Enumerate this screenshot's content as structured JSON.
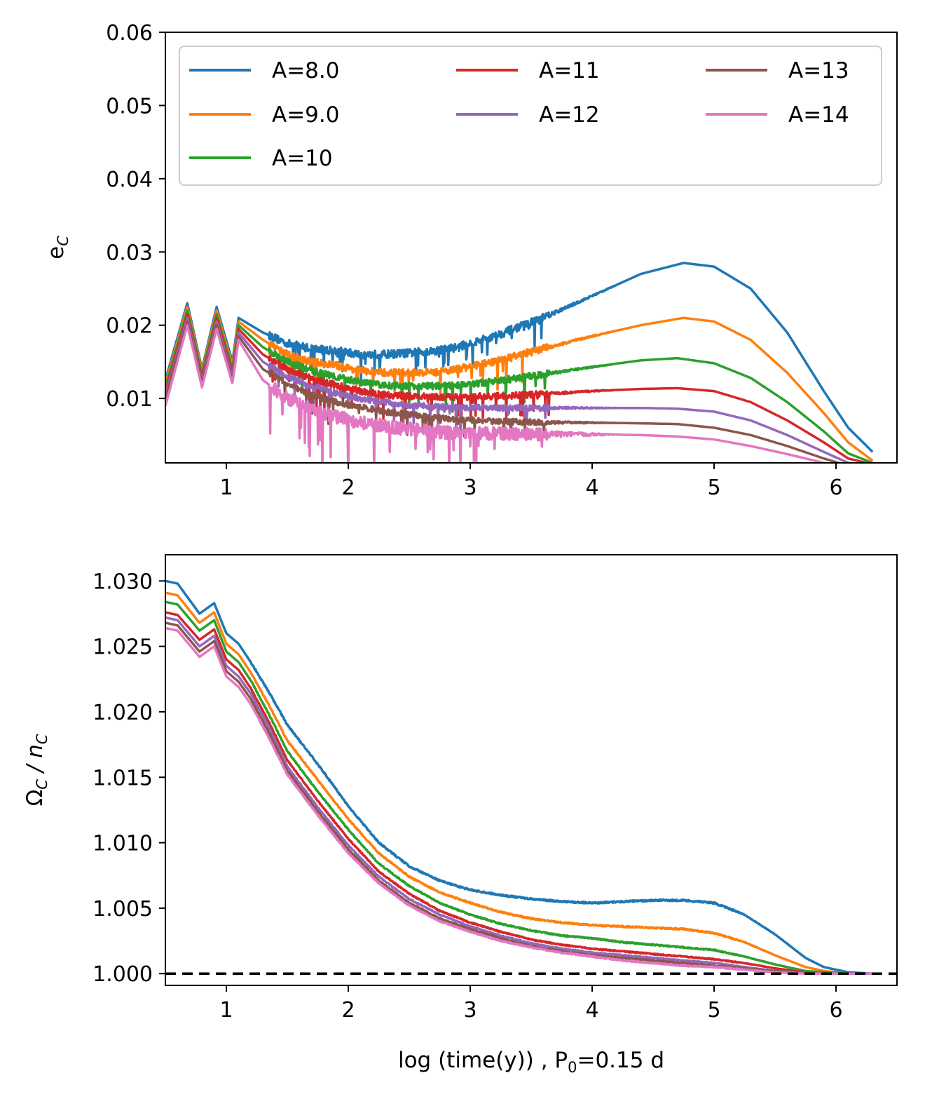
{
  "chart_data": [
    {
      "id": "top",
      "type": "line",
      "title": "",
      "xlabel": "",
      "ylabel": "e",
      "ylabel_sub": "C",
      "xlim": [
        0.5,
        6.5
      ],
      "ylim": [
        0.0012,
        0.06
      ],
      "xticks": [
        {
          "v": 1,
          "label": "1"
        },
        {
          "v": 2,
          "label": "2"
        },
        {
          "v": 3,
          "label": "3"
        },
        {
          "v": 4,
          "label": "4"
        },
        {
          "v": 5,
          "label": "5"
        },
        {
          "v": 6,
          "label": "6"
        }
      ],
      "yticks": [
        {
          "v": 0.01,
          "label": "0.01"
        },
        {
          "v": 0.02,
          "label": "0.02"
        },
        {
          "v": 0.03,
          "label": "0.03"
        },
        {
          "v": 0.04,
          "label": "0.04"
        },
        {
          "v": 0.05,
          "label": "0.05"
        },
        {
          "v": 0.06,
          "label": "0.06"
        }
      ],
      "legend": {
        "placement": "top",
        "columns": 3
      },
      "series": [
        {
          "name": "A=8.0",
          "color": "#1f77b4",
          "noise": 0.0011,
          "x": [
            0.5,
            0.68,
            0.8,
            0.92,
            1.05,
            1.1,
            1.3,
            1.5,
            1.7,
            1.9,
            2.1,
            2.3,
            2.5,
            2.7,
            2.9,
            3.2,
            3.6,
            4.0,
            4.4,
            4.75,
            5.0,
            5.3,
            5.6,
            5.9,
            6.1,
            6.3
          ],
          "y": [
            0.0125,
            0.023,
            0.014,
            0.0225,
            0.015,
            0.021,
            0.019,
            0.0175,
            0.0168,
            0.0165,
            0.016,
            0.016,
            0.0162,
            0.0165,
            0.017,
            0.0185,
            0.021,
            0.024,
            0.027,
            0.0285,
            0.028,
            0.025,
            0.019,
            0.011,
            0.006,
            0.0027
          ]
        },
        {
          "name": "A=9.0",
          "color": "#ff7f0e",
          "noise": 0.001,
          "x": [
            0.5,
            0.68,
            0.8,
            0.92,
            1.05,
            1.1,
            1.3,
            1.5,
            1.7,
            1.9,
            2.1,
            2.3,
            2.5,
            2.7,
            2.9,
            3.2,
            3.6,
            4.0,
            4.4,
            4.75,
            5.0,
            5.3,
            5.6,
            5.9,
            6.1,
            6.3
          ],
          "y": [
            0.012,
            0.0225,
            0.0137,
            0.022,
            0.0145,
            0.0205,
            0.018,
            0.016,
            0.015,
            0.0145,
            0.0138,
            0.0135,
            0.0135,
            0.0136,
            0.014,
            0.015,
            0.0168,
            0.0185,
            0.02,
            0.021,
            0.0205,
            0.018,
            0.0135,
            0.008,
            0.004,
            0.0015
          ]
        },
        {
          "name": "A=10",
          "color": "#2ca02c",
          "noise": 0.0009,
          "x": [
            0.5,
            0.68,
            0.8,
            0.92,
            1.05,
            1.1,
            1.3,
            1.5,
            1.7,
            1.9,
            2.1,
            2.3,
            2.5,
            2.7,
            2.9,
            3.2,
            3.6,
            4.0,
            4.4,
            4.7,
            5.0,
            5.3,
            5.6,
            5.9,
            6.1,
            6.3
          ],
          "y": [
            0.0115,
            0.022,
            0.0133,
            0.0215,
            0.014,
            0.02,
            0.017,
            0.015,
            0.0138,
            0.013,
            0.0122,
            0.0118,
            0.0117,
            0.0117,
            0.0118,
            0.0123,
            0.0133,
            0.0143,
            0.0152,
            0.0155,
            0.0148,
            0.0128,
            0.0095,
            0.0055,
            0.0025,
            0.0012
          ]
        },
        {
          "name": "A=11",
          "color": "#d62728",
          "noise": 0.0009,
          "x": [
            0.5,
            0.68,
            0.8,
            0.92,
            1.05,
            1.1,
            1.3,
            1.5,
            1.7,
            1.9,
            2.1,
            2.3,
            2.5,
            2.7,
            2.9,
            3.2,
            3.6,
            4.0,
            4.4,
            4.7,
            5.0,
            5.3,
            5.6,
            5.9,
            6.1,
            6.3
          ],
          "y": [
            0.011,
            0.0215,
            0.0128,
            0.021,
            0.0135,
            0.0195,
            0.016,
            0.014,
            0.0127,
            0.0118,
            0.011,
            0.0105,
            0.0103,
            0.0102,
            0.0102,
            0.0103,
            0.0106,
            0.011,
            0.0113,
            0.0114,
            0.011,
            0.0095,
            0.007,
            0.004,
            0.0018,
            0.001
          ]
        },
        {
          "name": "A=12",
          "color": "#9467bd",
          "noise": 0.0008,
          "x": [
            0.5,
            0.68,
            0.8,
            0.92,
            1.05,
            1.1,
            1.3,
            1.5,
            1.7,
            1.9,
            2.1,
            2.3,
            2.5,
            2.7,
            2.9,
            3.2,
            3.6,
            4.0,
            4.4,
            4.7,
            5.0,
            5.3,
            5.6,
            5.9,
            6.1,
            6.3
          ],
          "y": [
            0.0105,
            0.021,
            0.0124,
            0.0205,
            0.013,
            0.019,
            0.015,
            0.013,
            0.0117,
            0.0107,
            0.01,
            0.0095,
            0.0091,
            0.0089,
            0.0088,
            0.0087,
            0.0087,
            0.0087,
            0.0087,
            0.0086,
            0.0082,
            0.007,
            0.005,
            0.0027,
            0.0012,
            0.0008
          ]
        },
        {
          "name": "A=13",
          "color": "#8c564b",
          "noise": 0.0008,
          "x": [
            0.5,
            0.68,
            0.8,
            0.92,
            1.05,
            1.1,
            1.3,
            1.5,
            1.7,
            1.9,
            2.1,
            2.3,
            2.5,
            2.7,
            2.9,
            3.2,
            3.6,
            4.0,
            4.4,
            4.7,
            5.0,
            5.3,
            5.6,
            5.9,
            6.1,
            6.3
          ],
          "y": [
            0.01,
            0.0205,
            0.012,
            0.02,
            0.0125,
            0.0185,
            0.014,
            0.012,
            0.0105,
            0.0095,
            0.0088,
            0.0082,
            0.0078,
            0.0074,
            0.0071,
            0.0069,
            0.0067,
            0.0067,
            0.0066,
            0.0065,
            0.006,
            0.005,
            0.0035,
            0.0018,
            0.0008,
            0.0005
          ]
        },
        {
          "name": "A=14",
          "color": "#e377c2",
          "noise": 0.0018,
          "x": [
            0.5,
            0.68,
            0.8,
            0.92,
            1.05,
            1.1,
            1.3,
            1.5,
            1.7,
            1.9,
            2.1,
            2.3,
            2.5,
            2.7,
            2.9,
            3.2,
            3.6,
            4.0,
            4.4,
            4.7,
            5.0,
            5.3,
            5.6,
            5.9,
            6.1,
            6.3
          ],
          "y": [
            0.009,
            0.02,
            0.0115,
            0.0195,
            0.012,
            0.018,
            0.0125,
            0.01,
            0.0085,
            0.0075,
            0.0068,
            0.0062,
            0.0058,
            0.0055,
            0.0053,
            0.0052,
            0.0051,
            0.0051,
            0.005,
            0.0048,
            0.0044,
            0.0035,
            0.0024,
            0.0012,
            0.0005,
            0.0003
          ]
        }
      ]
    },
    {
      "id": "bottom",
      "type": "line",
      "title": "",
      "xlabel": "log (time(y)) , P",
      "xlabel_sub": "0",
      "xlabel_tail": "=0.15 d",
      "ylabel": "Ω",
      "ylabel_sub": "C",
      "ylabel_mid": " / n",
      "ylabel_sub2": "C",
      "xlim": [
        0.5,
        6.5
      ],
      "ylim": [
        0.9991,
        1.032
      ],
      "reference_line": {
        "y": 1.0,
        "style": "dashed",
        "color": "#000000"
      },
      "xticks": [
        {
          "v": 1,
          "label": "1"
        },
        {
          "v": 2,
          "label": "2"
        },
        {
          "v": 3,
          "label": "3"
        },
        {
          "v": 4,
          "label": "4"
        },
        {
          "v": 5,
          "label": "5"
        },
        {
          "v": 6,
          "label": "6"
        }
      ],
      "yticks": [
        {
          "v": 1.0,
          "label": "1.000"
        },
        {
          "v": 1.005,
          "label": "1.005"
        },
        {
          "v": 1.01,
          "label": "1.010"
        },
        {
          "v": 1.015,
          "label": "1.015"
        },
        {
          "v": 1.02,
          "label": "1.020"
        },
        {
          "v": 1.025,
          "label": "1.025"
        },
        {
          "v": 1.03,
          "label": "1.030"
        }
      ],
      "series": [
        {
          "name": "A=8.0",
          "color": "#1f77b4",
          "noise": 0.00012,
          "x": [
            0.5,
            0.6,
            0.78,
            0.9,
            1.0,
            1.1,
            1.2,
            1.35,
            1.5,
            1.75,
            2.0,
            2.25,
            2.5,
            2.75,
            3.0,
            3.25,
            3.5,
            3.75,
            4.0,
            4.25,
            4.5,
            4.75,
            5.0,
            5.25,
            5.5,
            5.75,
            5.9,
            6.1,
            6.3
          ],
          "y": [
            1.03,
            1.0298,
            1.0275,
            1.0283,
            1.026,
            1.0252,
            1.0238,
            1.0215,
            1.019,
            1.016,
            1.0128,
            1.01,
            1.0082,
            1.0071,
            1.0064,
            1.006,
            1.0057,
            1.0055,
            1.0054,
            1.0055,
            1.0056,
            1.0056,
            1.0054,
            1.0045,
            1.003,
            1.0012,
            1.0005,
            1.0001,
            1.0
          ]
        },
        {
          "name": "A=9.0",
          "color": "#ff7f0e",
          "noise": 0.0001,
          "x": [
            0.5,
            0.6,
            0.78,
            0.9,
            1.0,
            1.1,
            1.2,
            1.35,
            1.5,
            1.75,
            2.0,
            2.25,
            2.5,
            2.75,
            3.0,
            3.25,
            3.5,
            3.75,
            4.0,
            4.25,
            4.5,
            4.75,
            5.0,
            5.25,
            5.5,
            5.75,
            5.9,
            6.1,
            6.3
          ],
          "y": [
            1.0291,
            1.0289,
            1.0268,
            1.0276,
            1.0252,
            1.0244,
            1.023,
            1.0205,
            1.0178,
            1.0148,
            1.0118,
            1.0092,
            1.0074,
            1.0062,
            1.0054,
            1.0047,
            1.0042,
            1.0039,
            1.0037,
            1.0036,
            1.0035,
            1.0034,
            1.0031,
            1.0024,
            1.0014,
            1.0005,
            1.0002,
            1.0,
            1.0
          ]
        },
        {
          "name": "A=10",
          "color": "#2ca02c",
          "noise": 9e-05,
          "x": [
            0.5,
            0.6,
            0.78,
            0.9,
            1.0,
            1.1,
            1.2,
            1.35,
            1.5,
            1.75,
            2.0,
            2.25,
            2.5,
            2.75,
            3.0,
            3.25,
            3.5,
            3.75,
            4.0,
            4.25,
            4.5,
            4.75,
            5.0,
            5.25,
            5.5,
            5.75,
            5.9,
            6.1,
            6.3
          ],
          "y": [
            1.0284,
            1.0282,
            1.0262,
            1.027,
            1.0246,
            1.0238,
            1.0224,
            1.0198,
            1.017,
            1.0139,
            1.011,
            1.0084,
            1.0067,
            1.0054,
            1.0045,
            1.0038,
            1.0033,
            1.0029,
            1.0027,
            1.0024,
            1.0022,
            1.002,
            1.0018,
            1.0013,
            1.0007,
            1.0002,
            1.0001,
            1.0,
            1.0
          ]
        },
        {
          "name": "A=11",
          "color": "#d62728",
          "noise": 8e-05,
          "x": [
            0.5,
            0.6,
            0.78,
            0.9,
            1.0,
            1.1,
            1.2,
            1.35,
            1.5,
            1.75,
            2.0,
            2.25,
            2.5,
            2.75,
            3.0,
            3.25,
            3.5,
            3.75,
            4.0,
            4.25,
            4.5,
            4.75,
            5.0,
            5.25,
            5.5,
            5.75,
            5.9,
            6.1,
            6.3
          ],
          "y": [
            1.0276,
            1.0274,
            1.0255,
            1.0263,
            1.024,
            1.0232,
            1.0218,
            1.0192,
            1.0163,
            1.0132,
            1.0103,
            1.0078,
            1.0061,
            1.0048,
            1.0039,
            1.0032,
            1.0026,
            1.0022,
            1.0019,
            1.0017,
            1.0015,
            1.0013,
            1.0011,
            1.0008,
            1.0004,
            1.0001,
            1.0,
            1.0,
            1.0
          ]
        },
        {
          "name": "A=12",
          "color": "#9467bd",
          "noise": 8e-05,
          "x": [
            0.5,
            0.6,
            0.78,
            0.9,
            1.0,
            1.1,
            1.2,
            1.35,
            1.5,
            1.75,
            2.0,
            2.25,
            2.5,
            2.75,
            3.0,
            3.25,
            3.5,
            3.75,
            4.0,
            4.25,
            4.5,
            4.75,
            5.0,
            5.25,
            5.5,
            5.75,
            5.9,
            6.1,
            6.3
          ],
          "y": [
            1.0272,
            1.027,
            1.025,
            1.0258,
            1.0235,
            1.0227,
            1.0214,
            1.0188,
            1.0158,
            1.0127,
            1.0098,
            1.0074,
            1.0057,
            1.0045,
            1.0036,
            1.0029,
            1.0023,
            1.0019,
            1.0016,
            1.0014,
            1.0012,
            1.001,
            1.0008,
            1.0005,
            1.0002,
            1.0001,
            1.0,
            1.0,
            1.0
          ]
        },
        {
          "name": "A=13",
          "color": "#8c564b",
          "noise": 8e-05,
          "x": [
            0.5,
            0.6,
            0.78,
            0.9,
            1.0,
            1.1,
            1.2,
            1.35,
            1.5,
            1.75,
            2.0,
            2.25,
            2.5,
            2.75,
            3.0,
            3.25,
            3.5,
            3.75,
            4.0,
            4.25,
            4.5,
            4.75,
            5.0,
            5.25,
            5.5,
            5.75,
            5.9,
            6.1,
            6.3
          ],
          "y": [
            1.0268,
            1.0266,
            1.0246,
            1.0254,
            1.0231,
            1.0223,
            1.021,
            1.0184,
            1.0155,
            1.0124,
            1.0095,
            1.0071,
            1.0054,
            1.0042,
            1.0034,
            1.0027,
            1.0021,
            1.0017,
            1.0014,
            1.0012,
            1.001,
            1.0008,
            1.0006,
            1.0004,
            1.0002,
            1.0001,
            1.0,
            1.0,
            1.0
          ]
        },
        {
          "name": "A=14",
          "color": "#e377c2",
          "noise": 8e-05,
          "x": [
            0.5,
            0.6,
            0.78,
            0.9,
            1.0,
            1.1,
            1.2,
            1.35,
            1.5,
            1.75,
            2.0,
            2.25,
            2.5,
            2.75,
            3.0,
            3.25,
            3.5,
            3.75,
            4.0,
            4.25,
            4.5,
            4.75,
            5.0,
            5.25,
            5.5,
            5.75,
            5.9,
            6.1,
            6.3
          ],
          "y": [
            1.0264,
            1.0262,
            1.0242,
            1.025,
            1.0227,
            1.0219,
            1.0206,
            1.018,
            1.0152,
            1.0121,
            1.0092,
            1.0069,
            1.0052,
            1.004,
            1.0032,
            1.0025,
            1.002,
            1.0016,
            1.0013,
            1.001,
            1.0008,
            1.0006,
            1.0005,
            1.0003,
            1.0001,
            1.0,
            1.0,
            1.0,
            1.0
          ]
        }
      ]
    }
  ]
}
